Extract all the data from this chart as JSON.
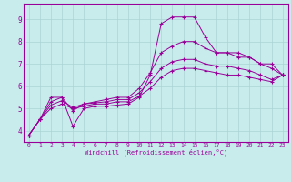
{
  "bg_color": "#c8ecec",
  "grid_color": "#aad4d4",
  "line_color": "#990099",
  "xlim": [
    -0.5,
    23.5
  ],
  "ylim": [
    3.5,
    9.7
  ],
  "xticks": [
    0,
    1,
    2,
    3,
    4,
    5,
    6,
    7,
    8,
    9,
    10,
    11,
    12,
    13,
    14,
    15,
    16,
    17,
    18,
    19,
    20,
    21,
    22,
    23
  ],
  "yticks": [
    4,
    5,
    6,
    7,
    8,
    9
  ],
  "xlabel": "Windchill (Refroidissement éolien,°C)",
  "line1_x": [
    0,
    1,
    2,
    3,
    4,
    5,
    6,
    7,
    8,
    9,
    10,
    11,
    12,
    13,
    14,
    15,
    16,
    17,
    18,
    19,
    20,
    21,
    22,
    23
  ],
  "line1_y": [
    3.8,
    4.5,
    5.5,
    5.5,
    4.2,
    5.0,
    5.1,
    5.1,
    5.15,
    5.2,
    5.5,
    6.5,
    8.8,
    9.1,
    9.1,
    9.1,
    8.2,
    7.5,
    7.5,
    7.3,
    7.3,
    7.0,
    7.0,
    6.5
  ],
  "line2_x": [
    0,
    1,
    2,
    3,
    4,
    5,
    6,
    7,
    8,
    9,
    10,
    11,
    12,
    13,
    14,
    15,
    16,
    17,
    18,
    19,
    20,
    21,
    22,
    23
  ],
  "line2_y": [
    3.8,
    4.5,
    5.3,
    5.5,
    4.9,
    5.2,
    5.3,
    5.4,
    5.5,
    5.5,
    5.9,
    6.6,
    7.5,
    7.8,
    8.0,
    8.0,
    7.7,
    7.5,
    7.5,
    7.5,
    7.3,
    7.0,
    6.8,
    6.5
  ],
  "line3_x": [
    0,
    1,
    2,
    3,
    4,
    5,
    6,
    7,
    8,
    9,
    10,
    11,
    12,
    13,
    14,
    15,
    16,
    17,
    18,
    19,
    20,
    21,
    22,
    23
  ],
  "line3_y": [
    3.8,
    4.5,
    5.15,
    5.35,
    5.05,
    5.2,
    5.25,
    5.3,
    5.4,
    5.4,
    5.7,
    6.2,
    6.8,
    7.1,
    7.2,
    7.2,
    7.0,
    6.9,
    6.9,
    6.8,
    6.7,
    6.5,
    6.3,
    6.5
  ],
  "line4_x": [
    0,
    1,
    2,
    3,
    4,
    5,
    6,
    7,
    8,
    9,
    10,
    11,
    12,
    13,
    14,
    15,
    16,
    17,
    18,
    19,
    20,
    21,
    22,
    23
  ],
  "line4_y": [
    3.8,
    4.5,
    5.0,
    5.2,
    5.0,
    5.1,
    5.2,
    5.2,
    5.3,
    5.3,
    5.55,
    5.9,
    6.4,
    6.7,
    6.8,
    6.8,
    6.7,
    6.6,
    6.5,
    6.5,
    6.4,
    6.3,
    6.2,
    6.5
  ]
}
